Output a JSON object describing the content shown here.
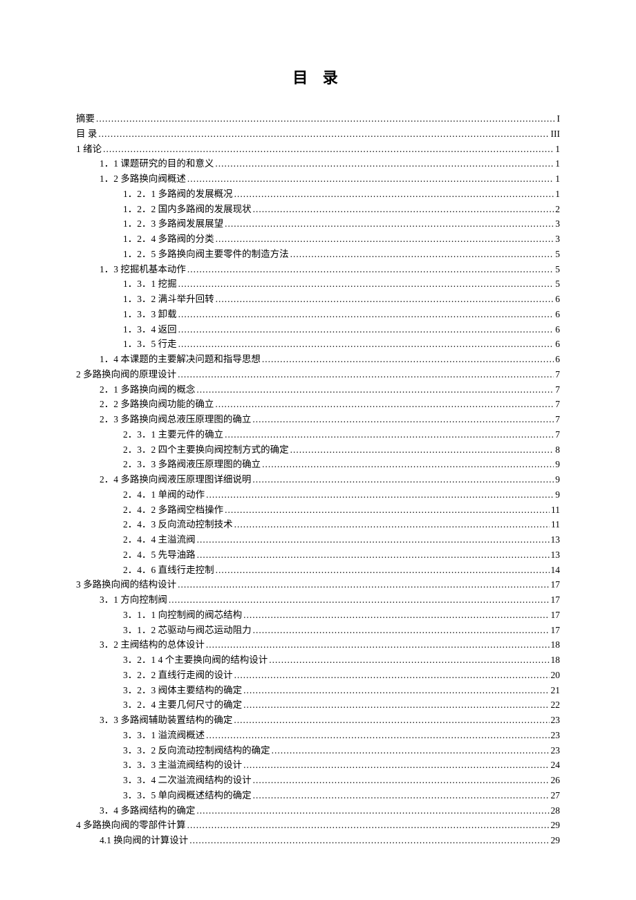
{
  "title": "目 录",
  "entries": [
    {
      "indent": 0,
      "label": "摘要",
      "page": "I"
    },
    {
      "indent": 0,
      "label": "目  录",
      "page": "III"
    },
    {
      "indent": 0,
      "label": "1     绪论",
      "page": "1"
    },
    {
      "indent": 1,
      "label": "1．1     课题研究的目的和意义",
      "page": "1"
    },
    {
      "indent": 1,
      "label": "1．2     多路换向阀概述",
      "page": "1"
    },
    {
      "indent": 2,
      "label": "1．2．1  多路阀的发展概况",
      "page": "1"
    },
    {
      "indent": 2,
      "label": "1．2．2  国内多路阀的发展现状",
      "page": "2"
    },
    {
      "indent": 2,
      "label": "1．2．3  多路阀发展展望",
      "page": "3"
    },
    {
      "indent": 2,
      "label": "1．2．4  多路阀的分类",
      "page": "3"
    },
    {
      "indent": 2,
      "label": "1．2．5  多路换向阀主要零件的制造方法",
      "page": "5"
    },
    {
      "indent": 1,
      "label": "1．3     挖掘机基本动作",
      "page": "5"
    },
    {
      "indent": 2,
      "label": "1．3．1  挖掘",
      "page": "5"
    },
    {
      "indent": 2,
      "label": "1．3．2  满斗举升回转",
      "page": "6"
    },
    {
      "indent": 2,
      "label": "1．3．3  卸载",
      "page": "6"
    },
    {
      "indent": 2,
      "label": "1．3．4  返回",
      "page": "6"
    },
    {
      "indent": 2,
      "label": "1．3．5  行走",
      "page": "6"
    },
    {
      "indent": 1,
      "label": "1．4     本课题的主要解决问题和指导思想",
      "page": "6"
    },
    {
      "indent": 0,
      "label": "2     多路换向阀的原理设计",
      "page": "7"
    },
    {
      "indent": 1,
      "label": "2．1     多路换向阀的概念",
      "page": "7"
    },
    {
      "indent": 1,
      "label": "2．2     多路换向阀功能的确立",
      "page": "7"
    },
    {
      "indent": 1,
      "label": "2．3     多路换向阀总液压原理图的确立",
      "page": "7"
    },
    {
      "indent": 2,
      "label": "2．3．1     主要元件的确立",
      "page": "7"
    },
    {
      "indent": 2,
      "label": "2．3．2     四个主要换向阀控制方式的确定",
      "page": "8"
    },
    {
      "indent": 2,
      "label": "2．3．3     多路阀液压原理图的确立",
      "page": "9"
    },
    {
      "indent": 1,
      "label": "2．4    多路换向阀液压原理图详细说明",
      "page": "9"
    },
    {
      "indent": 2,
      "label": "2．4．1     单阀的动作",
      "page": "9"
    },
    {
      "indent": 2,
      "label": "2．4．2     多路阀空档操作",
      "page": "11"
    },
    {
      "indent": 2,
      "label": "2．4．3     反向流动控制技术",
      "page": "11"
    },
    {
      "indent": 2,
      "label": "2．4．4     主溢流阀",
      "page": "13"
    },
    {
      "indent": 2,
      "label": "2．4．5     先导油路",
      "page": "13"
    },
    {
      "indent": 2,
      "label": "2．4．6     直线行走控制",
      "page": "14"
    },
    {
      "indent": 0,
      "label": "3     多路换向阀的结构设计",
      "page": "17"
    },
    {
      "indent": 1,
      "label": "3．1     方向控制阀",
      "page": "17"
    },
    {
      "indent": 2,
      "label": "3．1．1  向控制阀的阀芯结构",
      "page": "17"
    },
    {
      "indent": 2,
      "label": "3．1．2  芯驱动与阀芯运动阻力",
      "page": "17"
    },
    {
      "indent": 1,
      "label": "3．2    主阀结构的总体设计",
      "page": "18"
    },
    {
      "indent": 2,
      "label": "3．2．1     4 个主要换向阀的结构设计",
      "page": "18"
    },
    {
      "indent": 2,
      "label": "3．2．2     直线行走阀的设计",
      "page": "20"
    },
    {
      "indent": 2,
      "label": "3．2．3     阀体主要结构的确定",
      "page": "21"
    },
    {
      "indent": 2,
      "label": "3．2．4    主要几何尺寸的确定",
      "page": "22"
    },
    {
      "indent": 1,
      "label": "3．3  多路阀辅助装置结构的确定",
      "page": "23"
    },
    {
      "indent": 2,
      "label": "3．3．1  溢流阀概述",
      "page": "23"
    },
    {
      "indent": 2,
      "label": "3．3．2  反向流动控制阀结构的确定",
      "page": "23"
    },
    {
      "indent": 2,
      "label": "3．3．3  主溢流阀结构的设计",
      "page": "24"
    },
    {
      "indent": 2,
      "label": "3．3．4   二次溢流阀结构的设计",
      "page": "26"
    },
    {
      "indent": 2,
      "label": "3．3．5  单向阀概述结构的确定",
      "page": "27"
    },
    {
      "indent": 1,
      "label": "3．4 多路阀结构的确定",
      "page": "28"
    },
    {
      "indent": 0,
      "label": "4     多路换向阀的零部件计算",
      "page": "29"
    },
    {
      "indent": 1,
      "label": "4.1 换向阀的计算设计",
      "page": "29"
    }
  ]
}
